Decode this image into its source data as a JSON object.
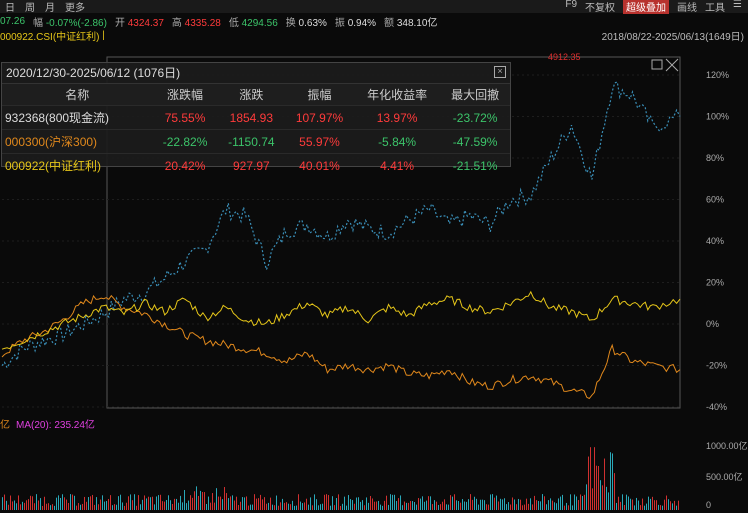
{
  "periods": [
    {
      "label": "日",
      "active": true
    },
    {
      "label": "周",
      "active": false
    },
    {
      "label": "月",
      "active": false
    },
    {
      "label": "更多",
      "active": false
    }
  ],
  "top_right": {
    "f9": "F9",
    "fuquan": "不复权",
    "overlay": "超级叠加",
    "draw": "画线",
    "tools": "工具",
    "menu": "☰"
  },
  "quote": {
    "price": "07.26",
    "change_label": "幅",
    "change": "-0.07%(-2.86)",
    "open_label": "开",
    "open": "4324.37",
    "high_label": "高",
    "high": "4335.28",
    "low_label": "低",
    "low": "4294.56",
    "turnover_label": "换",
    "turnover": "0.63%",
    "amplitude_label": "振",
    "amplitude": "0.94%",
    "amount_label": "额",
    "amount": "348.10亿"
  },
  "series_bar": {
    "main": "000922.CSI(中证红利)",
    "range": "2018/08/22-2025/06/13(1649日)"
  },
  "stats": {
    "title": "2020/12/30-2025/06/12 (1076日)",
    "headers": [
      "名称",
      "涨跌幅",
      "涨跌",
      "振幅",
      "年化收益率",
      "最大回撤"
    ],
    "rows": [
      {
        "name": "932368(800现金流)",
        "pct": "75.55%",
        "chg": "1854.93",
        "amp": "107.97%",
        "ann": "13.97%",
        "mdd": "-23.72%",
        "name_color": "#dddddd"
      },
      {
        "name": "000300(沪深300)",
        "pct": "-22.82%",
        "chg": "-1150.74",
        "amp": "55.97%",
        "ann": "-5.84%",
        "mdd": "-47.59%",
        "name_color": "#e0881c"
      },
      {
        "name": "000922(中证红利)",
        "pct": "20.42%",
        "chg": "927.97",
        "amp": "40.01%",
        "ann": "4.41%",
        "mdd": "-21.51%",
        "name_color": "#e6c619"
      }
    ]
  },
  "volume": {
    "unit": "亿",
    "ma_label": "MA(20): 235.24亿",
    "ticks": [
      "1000.00亿",
      "500.00亿",
      "0"
    ]
  },
  "chart_data": {
    "type": "line",
    "ylabel": "",
    "yticks": [
      "120%",
      "100%",
      "80%",
      "60%",
      "40%",
      "20%",
      "0%",
      "-20%",
      "-40%"
    ],
    "ylim": [
      -40,
      120
    ],
    "annotation": "4912.35",
    "x": [
      0,
      0.03,
      0.06,
      0.09,
      0.12,
      0.15,
      0.18,
      0.21,
      0.24,
      0.27,
      0.3,
      0.33,
      0.36,
      0.39,
      0.42,
      0.45,
      0.48,
      0.51,
      0.54,
      0.57,
      0.6,
      0.63,
      0.66,
      0.69,
      0.72,
      0.75,
      0.78,
      0.81,
      0.84,
      0.87,
      0.9,
      0.93,
      0.96,
      1.0
    ],
    "series": [
      {
        "name": "932368(800现金流)",
        "color": "#3a8fb8",
        "values": [
          -20,
          -12,
          -8,
          -5,
          0,
          5,
          12,
          15,
          22,
          30,
          36,
          55,
          52,
          30,
          45,
          48,
          42,
          50,
          46,
          44,
          50,
          55,
          48,
          52,
          48,
          60,
          62,
          80,
          96,
          70,
          115,
          110,
          95,
          100
        ]
      },
      {
        "name": "000300(沪深300)",
        "color": "#e0881c",
        "values": [
          -15,
          -8,
          -4,
          2,
          10,
          14,
          8,
          5,
          0,
          -5,
          -8,
          -10,
          -12,
          -14,
          -18,
          -14,
          -22,
          -20,
          -22,
          -20,
          -24,
          -25,
          -22,
          -28,
          -30,
          -27,
          -25,
          -28,
          -32,
          -35,
          -12,
          -18,
          -20,
          -22
        ]
      },
      {
        "name": "000922(中证红利)",
        "color": "#e6c619",
        "values": [
          -12,
          -8,
          -4,
          0,
          4,
          8,
          5,
          10,
          6,
          12,
          3,
          8,
          2,
          0,
          5,
          10,
          4,
          8,
          2,
          8,
          4,
          10,
          12,
          8,
          6,
          10,
          15,
          8,
          6,
          2,
          12,
          10,
          8,
          12
        ]
      }
    ]
  }
}
